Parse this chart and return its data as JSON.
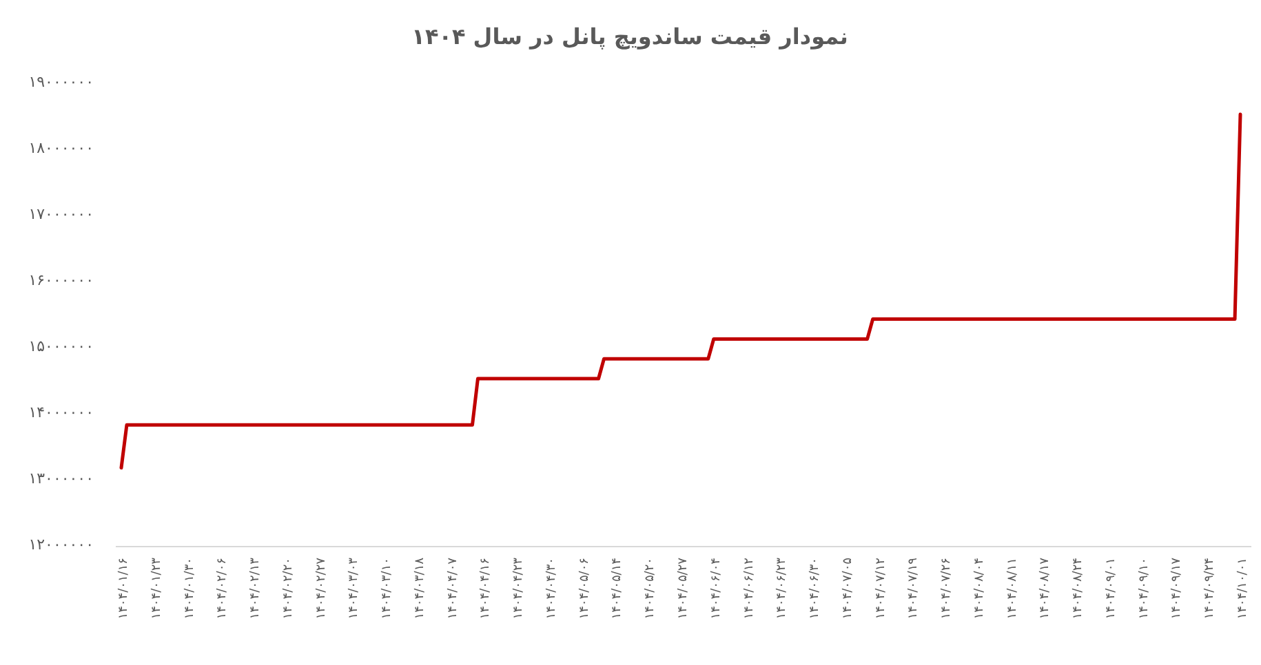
{
  "chart_data": {
    "type": "line",
    "title": "نمودار قیمت ساندویچ پانل در سال ۱۴۰۴",
    "color": "#c00000",
    "categories": [
      "۱۴۰۴/۰۱/۱۶",
      null,
      null,
      null,
      null,
      null,
      "۱۴۰۴/۰۱/۲۳",
      null,
      null,
      null,
      null,
      null,
      "۱۴۰۴/۰۱/۳۰",
      null,
      null,
      null,
      null,
      null,
      "۱۴۰۴/۰۲/۰۶",
      null,
      null,
      null,
      null,
      null,
      "۱۴۰۴/۰۲/۱۳",
      null,
      null,
      null,
      null,
      null,
      "۱۴۰۴/۰۲/۲۰",
      null,
      null,
      null,
      null,
      null,
      "۱۴۰۴/۰۲/۲۷",
      null,
      null,
      null,
      null,
      null,
      "۱۴۰۴/۰۳/۰۳",
      null,
      null,
      null,
      null,
      null,
      "۱۴۰۴/۰۳/۱۰",
      null,
      null,
      null,
      null,
      null,
      "۱۴۰۴/۰۳/۱۸",
      null,
      null,
      null,
      null,
      null,
      "۱۴۰۴/۰۴/۰۷",
      null,
      null,
      null,
      null,
      null,
      "۱۴۰۴/۰۴/۱۶",
      null,
      null,
      null,
      null,
      null,
      "۱۴۰۴/۰۴/۲۳",
      null,
      null,
      null,
      null,
      null,
      "۱۴۰۴/۰۴/۳۰",
      null,
      null,
      null,
      null,
      null,
      "۱۴۰۴/۰۵/۰۶",
      null,
      null,
      null,
      null,
      null,
      "۱۴۰۴/۰۵/۱۴",
      null,
      null,
      null,
      null,
      null,
      "۱۴۰۴/۰۵/۲۰",
      null,
      null,
      null,
      null,
      null,
      "۱۴۰۴/۰۵/۲۷",
      null,
      null,
      null,
      null,
      null,
      "۱۴۰۴/۰۶/۰۴",
      null,
      null,
      null,
      null,
      null,
      "۱۴۰۴/۰۶/۱۲",
      null,
      null,
      null,
      null,
      null,
      "۱۴۰۴/۰۶/۲۳",
      null,
      null,
      null,
      null,
      null,
      "۱۴۰۴/۰۶/۳۰",
      null,
      null,
      null,
      null,
      null,
      "۱۴۰۴/۰۷/۰۵",
      null,
      null,
      null,
      null,
      null,
      "۱۴۰۴/۰۷/۱۲",
      null,
      null,
      null,
      null,
      null,
      "۱۴۰۴/۰۷/۱۹",
      null,
      null,
      null,
      null,
      null,
      "۱۴۰۴/۰۷/۲۶",
      null,
      null,
      null,
      null,
      null,
      "۱۴۰۴/۰۸/۰۴",
      null,
      null,
      null,
      null,
      null,
      "۱۴۰۴/۰۸/۱۱",
      null,
      null,
      null,
      null,
      null,
      "۱۴۰۴/۰۸/۱۷",
      null,
      null,
      null,
      null,
      null,
      "۱۴۰۴/۰۸/۲۴",
      null,
      null,
      null,
      null,
      null,
      "۱۴۰۴/۰۹/۰۱",
      null,
      null,
      null,
      null,
      null,
      "۱۴۰۴/۰۹/۱۰",
      null,
      null,
      null,
      null,
      null,
      "۱۴۰۴/۰۹/۱۷",
      null,
      null,
      null,
      null,
      null,
      "۱۴۰۴/۰۹/۲۴",
      null,
      null,
      null,
      null,
      null,
      "۱۴۰۴/۱۰/۰۱"
    ],
    "values": [
      13150000,
      13800000,
      13800000,
      13800000,
      13800000,
      13800000,
      13800000,
      13800000,
      13800000,
      13800000,
      13800000,
      13800000,
      13800000,
      13800000,
      13800000,
      13800000,
      13800000,
      13800000,
      13800000,
      13800000,
      13800000,
      13800000,
      13800000,
      13800000,
      13800000,
      13800000,
      13800000,
      13800000,
      13800000,
      13800000,
      13800000,
      13800000,
      13800000,
      13800000,
      13800000,
      13800000,
      13800000,
      13800000,
      13800000,
      13800000,
      13800000,
      13800000,
      13800000,
      13800000,
      13800000,
      13800000,
      13800000,
      13800000,
      13800000,
      13800000,
      13800000,
      13800000,
      13800000,
      13800000,
      13800000,
      13800000,
      13800000,
      13800000,
      13800000,
      13800000,
      13800000,
      13800000,
      13800000,
      13800000,
      13800000,
      14500000,
      14500000,
      14500000,
      14500000,
      14500000,
      14500000,
      14500000,
      14500000,
      14500000,
      14500000,
      14500000,
      14500000,
      14500000,
      14500000,
      14500000,
      14500000,
      14500000,
      14500000,
      14500000,
      14500000,
      14500000,
      14500000,
      14500000,
      14800000,
      14800000,
      14800000,
      14800000,
      14800000,
      14800000,
      14800000,
      14800000,
      14800000,
      14800000,
      14800000,
      14800000,
      14800000,
      14800000,
      14800000,
      14800000,
      14800000,
      14800000,
      14800000,
      14800000,
      15100000,
      15100000,
      15100000,
      15100000,
      15100000,
      15100000,
      15100000,
      15100000,
      15100000,
      15100000,
      15100000,
      15100000,
      15100000,
      15100000,
      15100000,
      15100000,
      15100000,
      15100000,
      15100000,
      15100000,
      15100000,
      15100000,
      15100000,
      15100000,
      15100000,
      15100000,
      15100000,
      15100000,
      15100000,
      15400000,
      15400000,
      15400000,
      15400000,
      15400000,
      15400000,
      15400000,
      15400000,
      15400000,
      15400000,
      15400000,
      15400000,
      15400000,
      15400000,
      15400000,
      15400000,
      15400000,
      15400000,
      15400000,
      15400000,
      15400000,
      15400000,
      15400000,
      15400000,
      15400000,
      15400000,
      15400000,
      15400000,
      15400000,
      15400000,
      15400000,
      15400000,
      15400000,
      15400000,
      15400000,
      15400000,
      15400000,
      15400000,
      15400000,
      15400000,
      15400000,
      15400000,
      15400000,
      15400000,
      15400000,
      15400000,
      15400000,
      15400000,
      15400000,
      15400000,
      15400000,
      15400000,
      15400000,
      15400000,
      15400000,
      15400000,
      15400000,
      15400000,
      15400000,
      15400000,
      15400000,
      15400000,
      15400000,
      15400000,
      15400000,
      15400000,
      15400000,
      18500000
    ],
    "ylim": [
      12000000,
      19000000
    ],
    "yticks": [
      {
        "value": 12000000,
        "label": "۱۲۰۰۰۰۰۰"
      },
      {
        "value": 13000000,
        "label": "۱۳۰۰۰۰۰۰"
      },
      {
        "value": 14000000,
        "label": "۱۴۰۰۰۰۰۰"
      },
      {
        "value": 15000000,
        "label": "۱۵۰۰۰۰۰۰"
      },
      {
        "value": 16000000,
        "label": "۱۶۰۰۰۰۰۰"
      },
      {
        "value": 17000000,
        "label": "۱۷۰۰۰۰۰۰"
      },
      {
        "value": 18000000,
        "label": "۱۸۰۰۰۰۰۰"
      },
      {
        "value": 19000000,
        "label": "۱۹۰۰۰۰۰۰"
      }
    ],
    "grid": false,
    "marker": "none",
    "line_style": "solid"
  }
}
